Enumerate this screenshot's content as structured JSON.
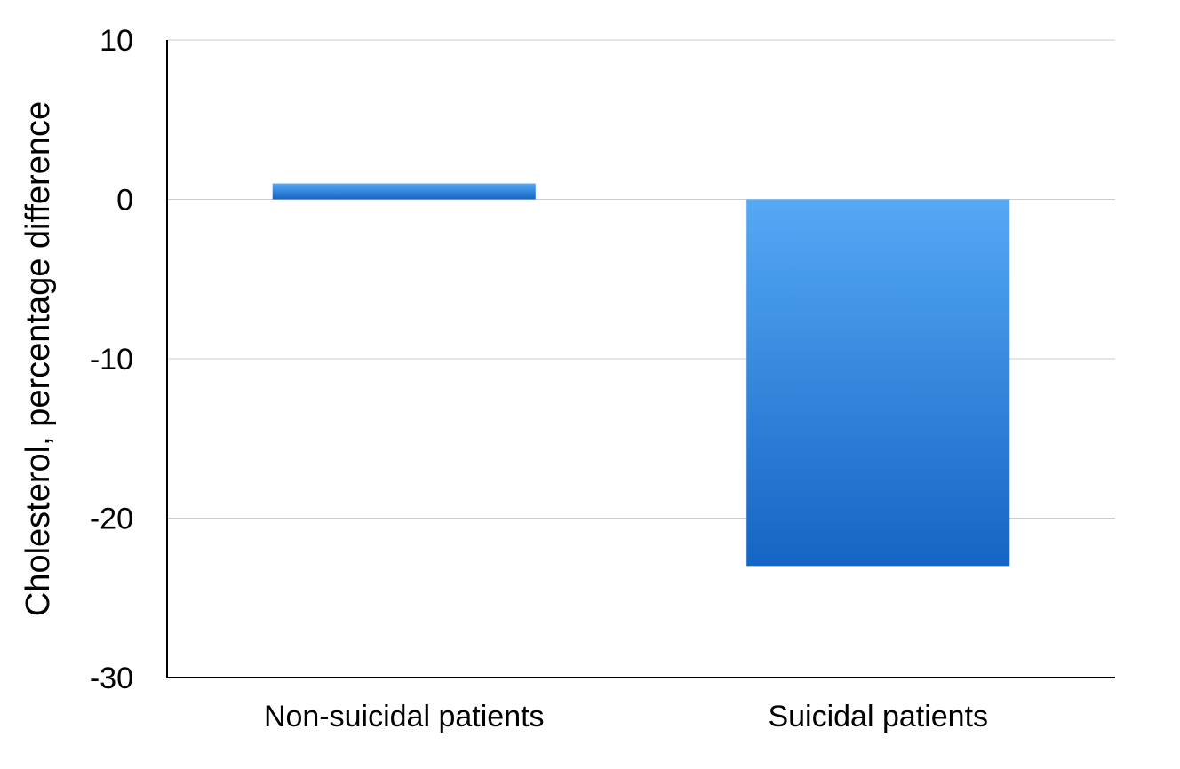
{
  "chart_data": {
    "type": "bar",
    "title": "",
    "xlabel": "",
    "ylabel": "Cholesterol, percentage difference",
    "categories": [
      "Non-suicidal patients",
      "Suicidal patients"
    ],
    "values": [
      1,
      -23
    ],
    "ylim": [
      -30,
      10
    ],
    "yticks": [
      10,
      0,
      -10,
      -20,
      -30
    ],
    "ytick_labels": [
      "10",
      "0",
      "-10",
      "-20",
      "-30"
    ],
    "grid": true,
    "legend": "none",
    "colors": {
      "bar_top": "#55a9f5",
      "bar_bottom": "#1565c4",
      "grid": "#cccccc",
      "axis": "#000000"
    }
  }
}
